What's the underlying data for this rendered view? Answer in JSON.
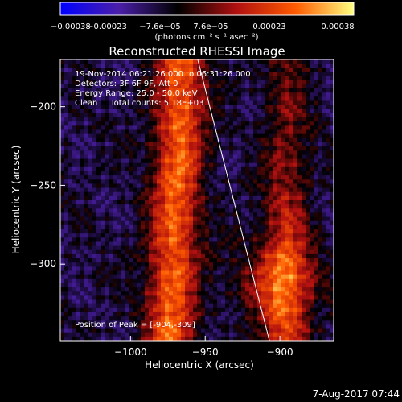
{
  "chart_data": {
    "type": "heatmap",
    "title": "Reconstructed RHESSI Image",
    "xlabel": "Heliocentric X (arcsec)",
    "ylabel": "Heliocentric Y (arcsec)",
    "x_ticks": [
      -1000,
      -950,
      -900
    ],
    "x_tick_labels": [
      "−1000",
      "−950",
      "−900"
    ],
    "y_ticks": [
      -200,
      -250,
      -300
    ],
    "y_tick_labels": [
      "−200",
      "−250",
      "−300"
    ],
    "xlim": [
      -1047,
      -864
    ],
    "ylim": [
      -349,
      -170
    ],
    "colorbar": {
      "ticks": [
        "−0.00038",
        "−0.00023",
        "−7.6e−05",
        "7.6e−05",
        "0.00023",
        "0.00038"
      ],
      "label": "(photons cm⁻² s⁻¹ asec⁻²)",
      "range": [
        -0.00038,
        0.00038
      ],
      "colors": [
        "#0000ff",
        "#4b1fa8",
        "#000000",
        "#b01010",
        "#ff5a00",
        "#ffff80"
      ]
    },
    "annotations": {
      "time": "19-Nov-2014 06:21:26.000 to 06:31:26.000",
      "detectors": "Detectors: 3F 6F 9F, Att 0",
      "energy": "Energy Range: 25.0 - 50.0 keV",
      "clean": "Clean     Total counts: 5.18E+03",
      "peak": "Position of Peak = [-904,-309]"
    },
    "peak": [
      -904,
      -309
    ],
    "limb_line": [
      [
        -955,
        -170
      ],
      [
        -907,
        -349
      ]
    ],
    "date_stamp": "7-Aug-2017 07:44"
  }
}
